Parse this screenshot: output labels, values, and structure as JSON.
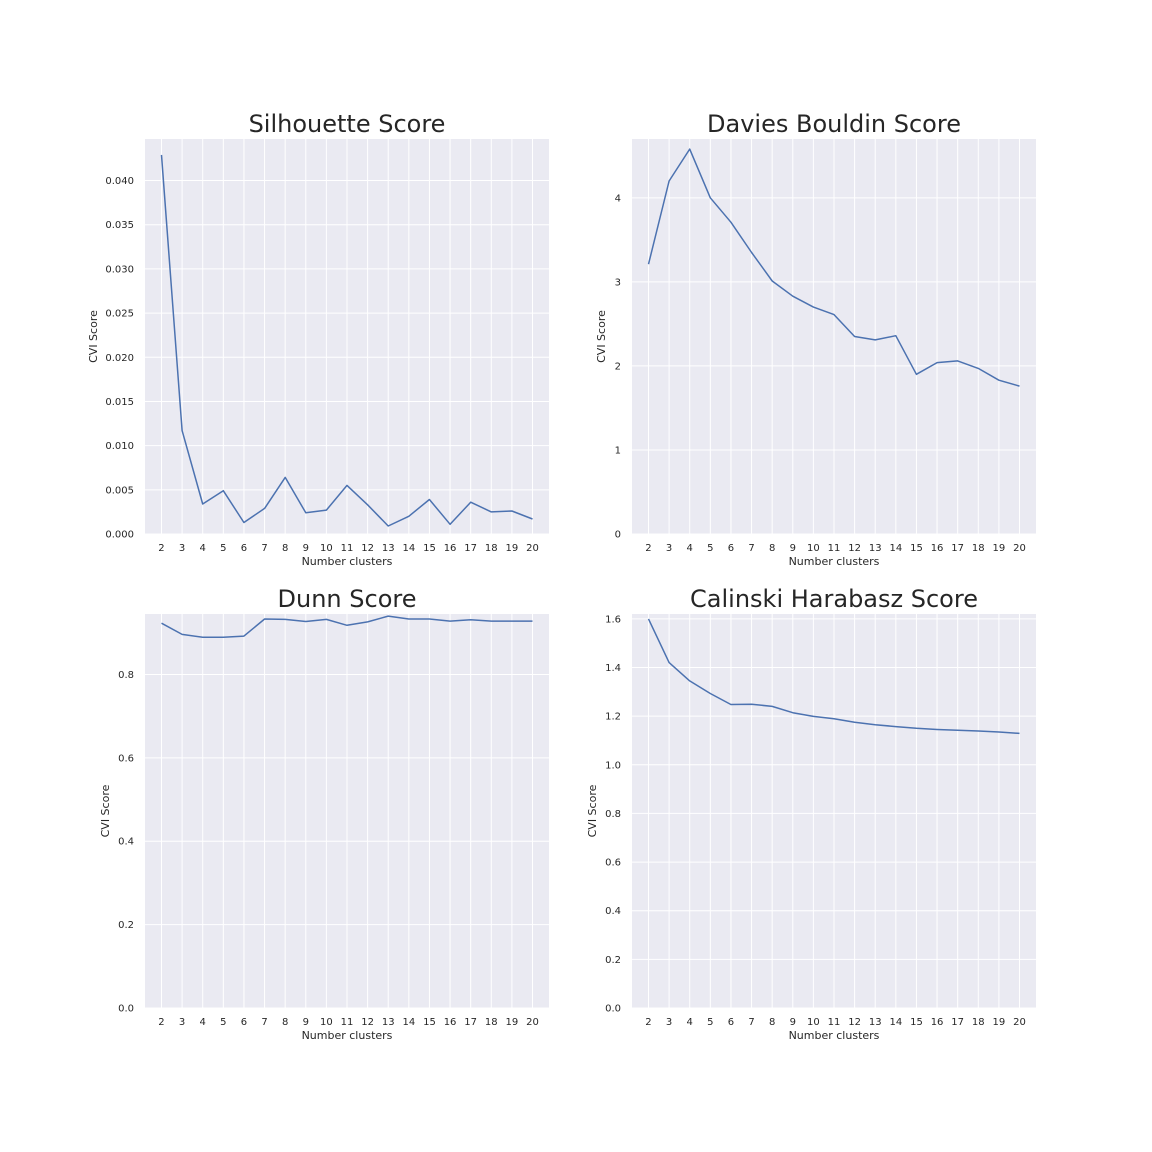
{
  "chart_data": [
    {
      "type": "line",
      "title": "Silhouette Score",
      "xlabel": "Number clusters",
      "ylabel": "CVI Score",
      "x": [
        2,
        3,
        4,
        5,
        6,
        7,
        8,
        9,
        10,
        11,
        12,
        13,
        14,
        15,
        16,
        17,
        18,
        19,
        20
      ],
      "x_ticks": [
        "2",
        "3",
        "4",
        "5",
        "6",
        "7",
        "8",
        "9",
        "10",
        "11",
        "12",
        "13",
        "14",
        "15",
        "16",
        "17",
        "18",
        "19",
        "20"
      ],
      "y_ticks": [
        "0.000",
        "0.005",
        "0.010",
        "0.015",
        "0.020",
        "0.025",
        "0.030",
        "0.035",
        "0.040"
      ],
      "ylim": [
        0,
        0.0447
      ],
      "xlim": [
        1.2,
        20.8
      ],
      "grid": true,
      "series": [
        {
          "color": "#4c72b0",
          "values": [
            0.0429,
            0.0117,
            0.0034,
            0.0049,
            0.0013,
            0.0029,
            0.0064,
            0.0024,
            0.0027,
            0.0055,
            0.0033,
            0.0009,
            0.002,
            0.0039,
            0.0011,
            0.0036,
            0.0025,
            0.0026,
            0.0017
          ]
        }
      ]
    },
    {
      "type": "line",
      "title": "Davies Bouldin Score",
      "xlabel": "Number clusters",
      "ylabel": "CVI Score",
      "x": [
        2,
        3,
        4,
        5,
        6,
        7,
        8,
        9,
        10,
        11,
        12,
        13,
        14,
        15,
        16,
        17,
        18,
        19,
        20
      ],
      "x_ticks": [
        "2",
        "3",
        "4",
        "5",
        "6",
        "7",
        "8",
        "9",
        "10",
        "11",
        "12",
        "13",
        "14",
        "15",
        "16",
        "17",
        "18",
        "19",
        "20"
      ],
      "y_ticks": [
        "0",
        "1",
        "2",
        "3",
        "4"
      ],
      "ylim": [
        0,
        4.7
      ],
      "xlim": [
        1.2,
        20.8
      ],
      "grid": true,
      "series": [
        {
          "color": "#4c72b0",
          "values": [
            3.21,
            4.2,
            4.58,
            4.0,
            3.71,
            3.35,
            3.01,
            2.83,
            2.7,
            2.61,
            2.35,
            2.31,
            2.36,
            1.9,
            2.04,
            2.06,
            1.97,
            1.83,
            1.76
          ]
        }
      ]
    },
    {
      "type": "line",
      "title": "Dunn Score",
      "xlabel": "Number clusters",
      "ylabel": "CVI Score",
      "x": [
        2,
        3,
        4,
        5,
        6,
        7,
        8,
        9,
        10,
        11,
        12,
        13,
        14,
        15,
        16,
        17,
        18,
        19,
        20
      ],
      "x_ticks": [
        "2",
        "3",
        "4",
        "5",
        "6",
        "7",
        "8",
        "9",
        "10",
        "11",
        "12",
        "13",
        "14",
        "15",
        "16",
        "17",
        "18",
        "19",
        "20"
      ],
      "y_ticks": [
        "0.0",
        "0.2",
        "0.4",
        "0.6",
        "0.8"
      ],
      "ylim": [
        0,
        0.945
      ],
      "xlim": [
        1.2,
        20.8
      ],
      "grid": true,
      "series": [
        {
          "color": "#4c72b0",
          "values": [
            0.923,
            0.896,
            0.889,
            0.889,
            0.892,
            0.933,
            0.932,
            0.927,
            0.932,
            0.918,
            0.926,
            0.94,
            0.933,
            0.933,
            0.928,
            0.931,
            0.928,
            0.928,
            0.928
          ]
        }
      ]
    },
    {
      "type": "line",
      "title": "Calinski Harabasz Score",
      "xlabel": "Number clusters",
      "ylabel": "CVI Score",
      "x": [
        2,
        3,
        4,
        5,
        6,
        7,
        8,
        9,
        10,
        11,
        12,
        13,
        14,
        15,
        16,
        17,
        18,
        19,
        20
      ],
      "x_ticks": [
        "2",
        "3",
        "4",
        "5",
        "6",
        "7",
        "8",
        "9",
        "10",
        "11",
        "12",
        "13",
        "14",
        "15",
        "16",
        "17",
        "18",
        "19",
        "20"
      ],
      "y_ticks": [
        "0.0",
        "0.2",
        "0.4",
        "0.6",
        "0.8",
        "1.0",
        "1.2",
        "1.4",
        "1.6"
      ],
      "ylim": [
        0,
        1.62
      ],
      "xlim": [
        1.2,
        20.8
      ],
      "grid": true,
      "series": [
        {
          "color": "#4c72b0",
          "values": [
            1.6,
            1.42,
            1.345,
            1.293,
            1.248,
            1.249,
            1.24,
            1.214,
            1.199,
            1.189,
            1.175,
            1.165,
            1.157,
            1.15,
            1.145,
            1.142,
            1.139,
            1.135,
            1.129
          ]
        }
      ]
    }
  ]
}
